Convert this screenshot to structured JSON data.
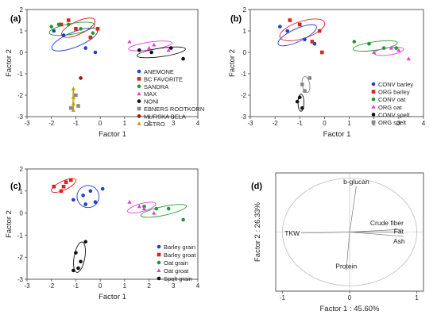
{
  "chart_data": [
    {
      "panel": "(a)",
      "type": "scatter",
      "xlabel": "Factor 1",
      "ylabel": "Factor 2",
      "xlim": [
        -3,
        4
      ],
      "ylim": [
        -3,
        2
      ],
      "xticks": [
        -3,
        -2,
        -1,
        0,
        1,
        2,
        3,
        4
      ],
      "yticks": [
        -3,
        -2,
        -1,
        0,
        1,
        2
      ],
      "legend_position": "bottom-right",
      "series": [
        {
          "name": "ANEMONE",
          "color": "#1f3fd0",
          "marker": "circle",
          "x": [
            -1.9,
            -1.5,
            -0.2,
            -0.6
          ],
          "y": [
            1.0,
            0.8,
            0.0,
            0.2
          ],
          "ellipse": {
            "cx": -1.05,
            "cy": 0.6,
            "rx": 1.0,
            "ry": 0.35,
            "angle": -22
          }
        },
        {
          "name": "BC FAVORITE",
          "color": "#e02020",
          "marker": "square",
          "x": [
            -1.3,
            -1.0,
            -0.4,
            -0.1,
            -1.6
          ],
          "y": [
            1.5,
            1.1,
            0.7,
            1.1,
            1.3
          ],
          "ellipse": {
            "cx": -0.9,
            "cy": 1.15,
            "rx": 0.75,
            "ry": 0.3,
            "angle": -25
          }
        },
        {
          "name": "SANDRA",
          "color": "#1f9a2a",
          "marker": "circle",
          "x": [
            -2.0,
            -1.7,
            -0.8,
            -0.3,
            -1.3
          ],
          "y": [
            1.2,
            1.3,
            1.1,
            0.9,
            1.3
          ],
          "ellipse": {
            "cx": -1.15,
            "cy": 1.1,
            "rx": 0.95,
            "ry": 0.25,
            "angle": -10
          }
        },
        {
          "name": "MAX",
          "color": "#e040e0",
          "marker": "triangle",
          "x": [
            1.2,
            2.0,
            2.8,
            2.2
          ],
          "y": [
            0.5,
            0.2,
            0.1,
            0.35
          ],
          "ellipse": {
            "cx": 2.05,
            "cy": 0.3,
            "rx": 0.9,
            "ry": 0.18,
            "angle": -8
          }
        },
        {
          "name": "NONI",
          "color": "#111111",
          "marker": "circle",
          "x": [
            1.6,
            2.1,
            2.9,
            3.4
          ],
          "y": [
            0.1,
            0.0,
            0.2,
            -0.3
          ],
          "ellipse": {
            "cx": 2.5,
            "cy": 0.0,
            "rx": 1.0,
            "ry": 0.2,
            "angle": -8
          }
        },
        {
          "name": "EBNERS ROOTKORN",
          "color": "#888888",
          "marker": "square",
          "x": [
            -1.0,
            -1.2,
            -0.9
          ],
          "y": [
            -2.0,
            -2.6,
            -2.5
          ],
          "ellipse": null
        },
        {
          "name": "MURSKA BELA",
          "color": "#9a1010",
          "marker": "circle",
          "x": [
            -0.8
          ],
          "y": [
            -1.2
          ],
          "ellipse": null
        },
        {
          "name": "OSTRO",
          "color": "#c0a000",
          "marker": "triangle",
          "x": [
            -1.1,
            -1.1,
            -1.1,
            -1.1
          ],
          "y": [
            -1.7,
            -2.1,
            -2.4,
            -2.7
          ],
          "ellipse": {
            "cx": -1.1,
            "cy": -2.2,
            "rx": 0.02,
            "ry": 0.55,
            "angle": 0
          }
        }
      ]
    },
    {
      "panel": "(b)",
      "type": "scatter",
      "xlabel": "Factor 1",
      "ylabel": "Factor 2",
      "xlim": [
        -3,
        4
      ],
      "ylim": [
        -3,
        2
      ],
      "xticks": [
        -3,
        -2,
        -1,
        0,
        1,
        2,
        3,
        4
      ],
      "yticks": [
        -3,
        -2,
        -1,
        0,
        1,
        2
      ],
      "legend_position": "right",
      "series": [
        {
          "name": "CONV barley",
          "color": "#1f3fd0",
          "marker": "circle",
          "x": [
            -1.8,
            -1.5,
            -0.8,
            -0.4
          ],
          "y": [
            1.2,
            1.0,
            0.6,
            0.4
          ],
          "ellipse": {
            "cx": -1.1,
            "cy": 0.8,
            "rx": 0.85,
            "ry": 0.3,
            "angle": -25
          }
        },
        {
          "name": "ORG barley",
          "color": "#e02020",
          "marker": "square",
          "x": [
            -1.4,
            -1.0,
            -0.2,
            -0.1,
            -0.5
          ],
          "y": [
            1.5,
            1.3,
            1.0,
            0.0,
            0.5
          ],
          "ellipse": {
            "cx": -0.9,
            "cy": 1.05,
            "rx": 0.95,
            "ry": 0.4,
            "angle": -18
          }
        },
        {
          "name": "CONV oat",
          "color": "#1f9a2a",
          "marker": "circle",
          "x": [
            1.2,
            1.8,
            2.4,
            2.9
          ],
          "y": [
            0.5,
            0.4,
            0.2,
            0.2
          ],
          "ellipse": {
            "cx": 2.05,
            "cy": 0.3,
            "rx": 0.9,
            "ry": 0.2,
            "angle": -8
          }
        },
        {
          "name": "ORG oat",
          "color": "#e040e0",
          "marker": "triangle",
          "x": [
            2.0,
            2.7,
            3.0,
            3.4
          ],
          "y": [
            0.0,
            0.2,
            0.1,
            -0.3
          ],
          "ellipse": {
            "cx": 2.6,
            "cy": 0.05,
            "rx": 0.6,
            "ry": 0.17,
            "angle": -8
          }
        },
        {
          "name": "CONV spelt",
          "color": "#111111",
          "marker": "circle",
          "x": [
            -1.1,
            -0.9,
            -1.0
          ],
          "y": [
            -2.3,
            -2.6,
            -2.1
          ],
          "ellipse": {
            "cx": -0.95,
            "cy": -2.35,
            "rx": 0.12,
            "ry": 0.4,
            "angle": 0
          }
        },
        {
          "name": "ORG spelt",
          "color": "#888888",
          "marker": "square",
          "x": [
            -0.9,
            -0.6,
            -0.8
          ],
          "y": [
            -1.5,
            -1.2,
            -1.8
          ],
          "ellipse": {
            "cx": -0.75,
            "cy": -1.5,
            "rx": 0.15,
            "ry": 0.38,
            "angle": -10
          }
        }
      ]
    },
    {
      "panel": "(c)",
      "type": "scatter",
      "xlabel": "Factor 1",
      "ylabel": "Factor 2",
      "xlim": [
        -3,
        4
      ],
      "ylim": [
        -3,
        2
      ],
      "xticks": [
        -3,
        -2,
        -1,
        0,
        1,
        2,
        3,
        4
      ],
      "yticks": [
        -3,
        -2,
        -1,
        0,
        1,
        2
      ],
      "legend_position": "bottom-right",
      "series": [
        {
          "name": "Barley grain",
          "color": "#1f3fd0",
          "marker": "circle",
          "x": [
            -1.1,
            -0.7,
            -0.4,
            -0.2,
            0.1,
            -0.6
          ],
          "y": [
            0.6,
            0.8,
            1.0,
            0.5,
            1.1,
            0.4
          ],
          "ellipse": {
            "cx": -0.5,
            "cy": 0.75,
            "rx": 0.45,
            "ry": 0.5,
            "angle": -30
          }
        },
        {
          "name": "Barley groat",
          "color": "#e02020",
          "marker": "square",
          "x": [
            -1.9,
            -1.6,
            -1.4,
            -1.2,
            -1.5
          ],
          "y": [
            1.2,
            1.0,
            1.4,
            1.5,
            1.2
          ],
          "ellipse": {
            "cx": -1.5,
            "cy": 1.25,
            "rx": 0.55,
            "ry": 0.2,
            "angle": -25
          }
        },
        {
          "name": "Oat grain",
          "color": "#1f9a2a",
          "marker": "circle",
          "x": [
            1.8,
            2.3,
            2.8,
            3.4
          ],
          "y": [
            0.3,
            0.2,
            0.2,
            -0.3
          ],
          "ellipse": {
            "cx": 2.6,
            "cy": 0.1,
            "rx": 0.95,
            "ry": 0.2,
            "angle": -12
          }
        },
        {
          "name": "Oat groat",
          "color": "#e040e0",
          "marker": "triangle",
          "x": [
            1.2,
            1.8,
            2.2,
            1.6
          ],
          "y": [
            0.5,
            0.2,
            0.0,
            0.3
          ],
          "ellipse": {
            "cx": 1.7,
            "cy": 0.25,
            "rx": 0.6,
            "ry": 0.18,
            "angle": -15
          }
        },
        {
          "name": "Spelt grain",
          "color": "#111111",
          "marker": "circle",
          "x": [
            -1.1,
            -0.8,
            -0.6,
            -1.0,
            -0.9
          ],
          "y": [
            -2.6,
            -2.2,
            -1.3,
            -1.8,
            -2.5
          ],
          "ellipse": {
            "cx": -0.85,
            "cy": -2.0,
            "rx": 0.22,
            "ry": 0.7,
            "angle": 10
          }
        }
      ]
    },
    {
      "panel": "(d)",
      "type": "scatter",
      "subtype": "correlation-circle",
      "xlabel": "Factor 1 : 45.60%",
      "ylabel": "Factor 2 : 26.33%",
      "xlim": [
        -1.1,
        1.1
      ],
      "ylim": [
        -1.1,
        1.1
      ],
      "xticks": [
        -1,
        0,
        1
      ],
      "yticks": [],
      "vectors": [
        {
          "name": "b-glucan",
          "x": 0.1,
          "y": 0.85
        },
        {
          "name": "TKW",
          "x": -0.72,
          "y": -0.02
        },
        {
          "name": "Crude fiber",
          "x": 0.78,
          "y": 0.05
        },
        {
          "name": "Fat",
          "x": 0.78,
          "y": 0.0
        },
        {
          "name": "Ash",
          "x": 0.8,
          "y": -0.08
        },
        {
          "name": "Protein",
          "x": -0.05,
          "y": -0.72
        }
      ]
    }
  ]
}
